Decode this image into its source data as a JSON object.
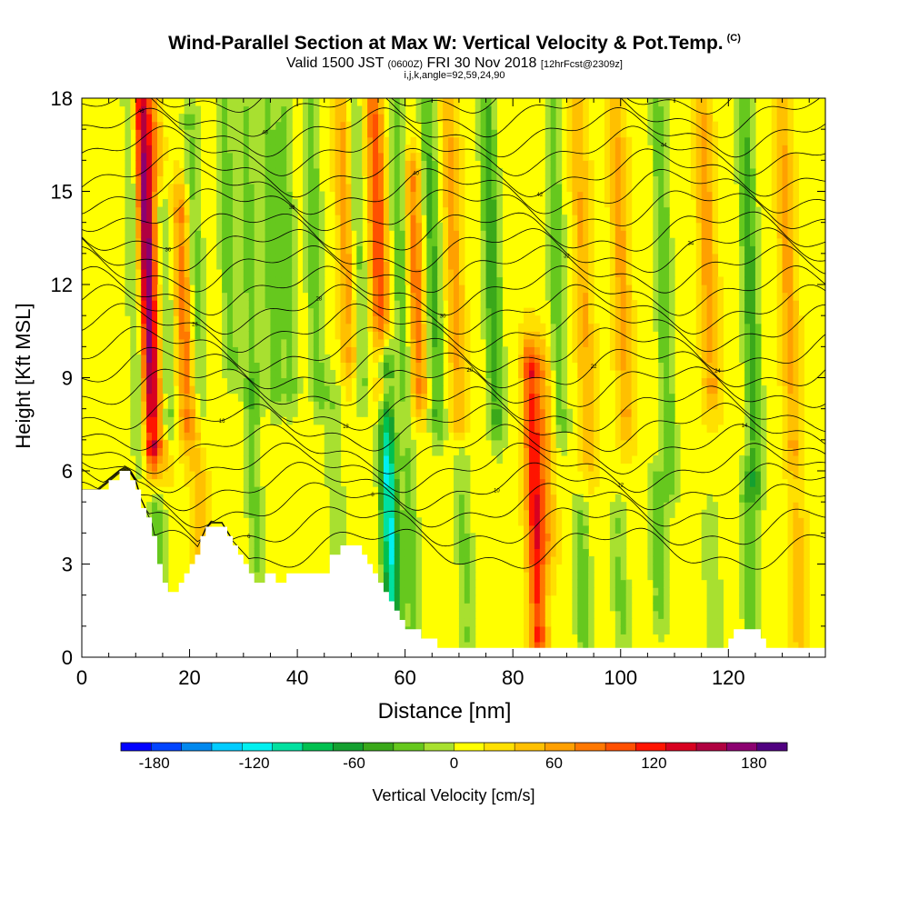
{
  "title": {
    "main": "Wind-Parallel Section at Max W: Vertical Velocity & Pot.Temp.",
    "copyright": "(C)",
    "valid_prefix": "Valid 1500 JST",
    "valid_utc": "(0600Z)",
    "valid_date": "FRI 30 Nov 2018",
    "forecast": "[12hrFcst@2309z]",
    "indices": "i,j,k,angle=92,59,24,90"
  },
  "chart_data": {
    "type": "heatmap",
    "title": "Wind-Parallel Section at Max W: Vertical Velocity & Pot.Temp.",
    "xlabel": "Distance [nm]",
    "ylabel": "Height [Kft MSL]",
    "xlim": [
      0,
      138
    ],
    "ylim": [
      0,
      18
    ],
    "x_ticks": [
      0,
      20,
      40,
      60,
      80,
      100,
      120
    ],
    "y_ticks": [
      0,
      3,
      6,
      9,
      12,
      15,
      18
    ],
    "colorbar": {
      "label": "Vertical Velocity [cm/s]",
      "min": -200,
      "max": 200,
      "ticks": [
        -180,
        -120,
        -60,
        0,
        60,
        120,
        180
      ],
      "colors": [
        "#0000ff",
        "#0044ff",
        "#0088ee",
        "#00ccff",
        "#00f0f0",
        "#00e0a0",
        "#00c050",
        "#14a030",
        "#3aa81a",
        "#66c81e",
        "#a8e030",
        "#ffff00",
        "#ffe000",
        "#ffc000",
        "#ffa000",
        "#ff7800",
        "#ff5000",
        "#ff1400",
        "#d80020",
        "#b00040",
        "#8c0070",
        "#500080"
      ]
    },
    "vertical_velocity_features": [
      {
        "x": 12,
        "z_range": [
          7,
          18
        ],
        "w": 165
      },
      {
        "x": 14,
        "z_range": [
          7,
          18
        ],
        "w": 60
      },
      {
        "x": 15,
        "z_range": [
          8,
          14
        ],
        "w": -70
      },
      {
        "x": 10,
        "z_range": [
          7,
          18
        ],
        "w": -45
      },
      {
        "x": 19,
        "z_range": [
          8,
          14
        ],
        "w": 75
      },
      {
        "x": 21,
        "z_range": [
          8,
          17
        ],
        "w": -40
      },
      {
        "x": 27,
        "z_range": [
          10,
          18
        ],
        "w": -45
      },
      {
        "x": 31,
        "z_range": [
          9,
          18
        ],
        "w": -40
      },
      {
        "x": 35,
        "z_range": [
          9,
          18
        ],
        "w": -45
      },
      {
        "x": 38,
        "z_range": [
          9,
          18
        ],
        "w": -40
      },
      {
        "x": 43,
        "z_range": [
          9,
          18
        ],
        "w": -45
      },
      {
        "x": 49,
        "z_range": [
          10,
          18
        ],
        "w": 60
      },
      {
        "x": 51,
        "z_range": [
          9,
          18
        ],
        "w": -40
      },
      {
        "x": 55,
        "z_range": [
          9,
          18
        ],
        "w": 100
      },
      {
        "x": 57,
        "z_range": [
          1,
          9
        ],
        "w": -130
      },
      {
        "x": 59,
        "z_range": [
          9,
          18
        ],
        "w": -45
      },
      {
        "x": 62,
        "z_range": [
          9,
          15
        ],
        "w": 75
      },
      {
        "x": 65,
        "z_range": [
          8,
          18
        ],
        "w": -55
      },
      {
        "x": 69,
        "z_range": [
          8,
          18
        ],
        "w": 50
      },
      {
        "x": 76,
        "z_range": [
          8,
          18
        ],
        "w": -65
      },
      {
        "x": 84,
        "z_range": [
          1,
          9
        ],
        "w": 115
      },
      {
        "x": 86,
        "z_range": [
          4,
          9
        ],
        "w": 50
      },
      {
        "x": 88,
        "z_range": [
          8,
          18
        ],
        "w": -45
      },
      {
        "x": 93,
        "z_range": [
          7,
          18
        ],
        "w": 45
      },
      {
        "x": 100,
        "z_range": [
          8,
          18
        ],
        "w": 50
      },
      {
        "x": 108,
        "z_range": [
          6,
          18
        ],
        "w": -45
      },
      {
        "x": 116,
        "z_range": [
          9,
          18
        ],
        "w": 55
      },
      {
        "x": 124,
        "z_range": [
          6,
          18
        ],
        "w": -60
      },
      {
        "x": 131,
        "z_range": [
          7,
          18
        ],
        "w": 50
      },
      {
        "x": 14,
        "z_range": [
          3,
          6
        ],
        "w": -45
      },
      {
        "x": 22,
        "z_range": [
          1,
          7
        ],
        "w": 40
      },
      {
        "x": 32,
        "z_range": [
          2,
          8
        ],
        "w": -35
      },
      {
        "x": 47,
        "z_range": [
          3,
          8
        ],
        "w": -30
      },
      {
        "x": 61,
        "z_range": [
          1,
          6
        ],
        "w": -40
      },
      {
        "x": 71,
        "z_range": [
          1,
          6
        ],
        "w": -35
      },
      {
        "x": 93,
        "z_range": [
          0,
          4
        ],
        "w": -45
      },
      {
        "x": 100,
        "z_range": [
          0,
          4
        ],
        "w": -35
      },
      {
        "x": 107,
        "z_range": [
          2,
          5
        ],
        "w": -45
      },
      {
        "x": 117,
        "z_range": [
          1,
          4
        ],
        "w": -30
      },
      {
        "x": 124,
        "z_range": [
          0,
          5
        ],
        "w": -45
      },
      {
        "x": 133,
        "z_range": [
          1,
          4
        ],
        "w": 40
      }
    ],
    "terrain": [
      [
        0,
        5.3
      ],
      [
        3,
        5.3
      ],
      [
        5,
        5.6
      ],
      [
        7,
        5.9
      ],
      [
        8,
        6.0
      ],
      [
        9,
        5.9
      ],
      [
        10,
        5.6
      ],
      [
        11,
        5.0
      ],
      [
        12,
        4.6
      ],
      [
        13,
        4.2
      ],
      [
        14,
        3.4
      ],
      [
        15,
        2.6
      ],
      [
        16,
        2.0
      ],
      [
        17,
        2.0
      ],
      [
        18,
        2.3
      ],
      [
        19,
        2.6
      ],
      [
        20,
        2.9
      ],
      [
        21,
        3.2
      ],
      [
        22,
        3.6
      ],
      [
        23,
        4.0
      ],
      [
        24,
        4.2
      ],
      [
        26,
        4.2
      ],
      [
        27,
        3.9
      ],
      [
        28,
        3.6
      ],
      [
        29,
        3.4
      ],
      [
        30,
        3.2
      ],
      [
        31,
        3.0
      ],
      [
        32,
        2.6
      ],
      [
        33,
        2.3
      ],
      [
        34,
        2.6
      ],
      [
        36,
        2.6
      ],
      [
        37,
        2.3
      ],
      [
        38,
        2.6
      ],
      [
        45,
        2.6
      ],
      [
        46,
        3.0
      ],
      [
        47,
        3.3
      ],
      [
        48,
        3.5
      ],
      [
        52,
        3.5
      ],
      [
        53,
        3.2
      ],
      [
        54,
        2.9
      ],
      [
        55,
        2.6
      ],
      [
        56,
        2.3
      ],
      [
        57,
        2.0
      ],
      [
        58,
        1.6
      ],
      [
        59,
        1.3
      ],
      [
        60,
        1.0
      ],
      [
        62,
        0.8
      ],
      [
        64,
        0.6
      ],
      [
        66,
        0.4
      ],
      [
        70,
        0.3
      ],
      [
        80,
        0.3
      ],
      [
        82,
        0.2
      ],
      [
        84,
        0.2
      ],
      [
        86,
        0.3
      ],
      [
        95,
        0.3
      ],
      [
        120,
        0.3
      ],
      [
        121,
        0.7
      ],
      [
        122,
        1.0
      ],
      [
        125,
        1.0
      ],
      [
        126,
        0.7
      ],
      [
        127,
        0.3
      ],
      [
        138,
        0.3
      ]
    ],
    "theta_contours": [
      {
        "label": "4",
        "base": 3.5
      },
      {
        "label": "6",
        "base": 4.2
      },
      {
        "label": "8",
        "base": 4.9
      },
      {
        "label": "10",
        "base": 5.5
      },
      {
        "label": "12",
        "base": 6.1
      },
      {
        "label": "14",
        "base": 6.7
      },
      {
        "label": "16",
        "base": 7.4
      },
      {
        "label": "18",
        "base": 8.0
      },
      {
        "label": "20",
        "base": 8.7
      },
      {
        "label": "22",
        "base": 9.3
      },
      {
        "label": "24",
        "base": 9.9
      },
      {
        "label": "26",
        "base": 10.6
      },
      {
        "label": "28",
        "base": 11.2
      },
      {
        "label": "30",
        "base": 11.8
      },
      {
        "label": "32",
        "base": 12.5
      },
      {
        "label": "34",
        "base": 13.1
      },
      {
        "label": "36",
        "base": 13.7
      },
      {
        "label": "38",
        "base": 14.4
      },
      {
        "label": "40",
        "base": 15.0
      },
      {
        "label": "42",
        "base": 15.6
      },
      {
        "label": "44",
        "base": 16.3
      },
      {
        "label": "46",
        "base": 16.9
      },
      {
        "label": "48",
        "base": 17.5
      },
      {
        "label": "50",
        "base": 18.2
      }
    ]
  }
}
